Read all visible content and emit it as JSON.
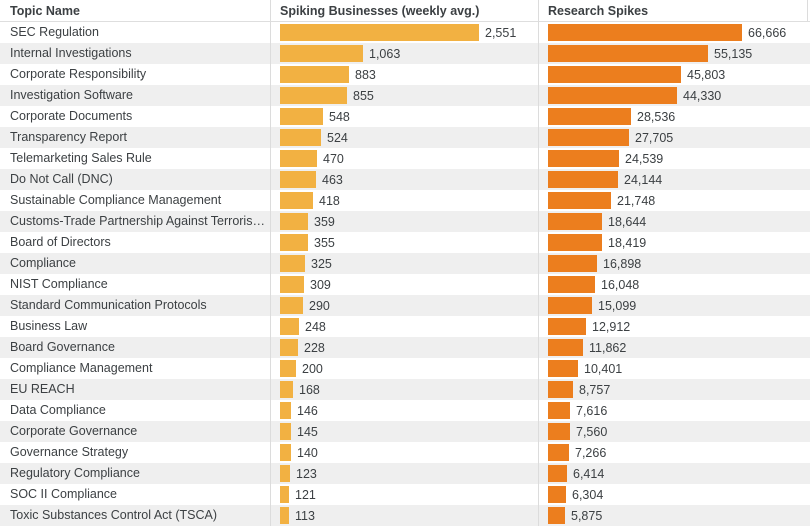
{
  "header": {
    "topic": "Topic Name",
    "spiking": "Spiking Businesses (weekly avg.)",
    "research": "Research Spikes"
  },
  "colors": {
    "spiking_bar": "#F2B142",
    "research_bar": "#EC7E1E",
    "row_alt_background": "#EFEFEF",
    "text": "#3C4043",
    "divider": "#DCDCDC"
  },
  "chart_data": {
    "type": "bar",
    "orientation": "horizontal",
    "title": "",
    "categories": [
      "SEC Regulation",
      "Internal Investigations",
      "Corporate Responsibility",
      "Investigation Software",
      "Corporate Documents",
      "Transparency Report",
      "Telemarketing Sales Rule",
      "Do Not Call (DNC)",
      "Sustainable Compliance Management",
      "Customs-Trade Partnership Against Terroris…",
      "Board of Directors",
      "Compliance",
      "NIST Compliance",
      "Standard Communication Protocols",
      "Business Law",
      "Board Governance",
      "Compliance Management",
      "EU REACH",
      "Data Compliance",
      "Corporate Governance",
      "Governance Strategy",
      "Regulatory Compliance",
      "SOC II Compliance",
      "Toxic Substances Control Act (TSCA)"
    ],
    "series": [
      {
        "name": "Spiking Businesses (weekly avg.)",
        "max": 2551,
        "values": [
          2551,
          1063,
          883,
          855,
          548,
          524,
          470,
          463,
          418,
          359,
          355,
          325,
          309,
          290,
          248,
          228,
          200,
          168,
          146,
          145,
          140,
          123,
          121,
          113
        ]
      },
      {
        "name": "Research Spikes",
        "max": 66666,
        "values": [
          66666,
          55135,
          45803,
          44330,
          28536,
          27705,
          24539,
          24144,
          21748,
          18644,
          18419,
          16898,
          16048,
          15099,
          12912,
          11862,
          10401,
          8757,
          7616,
          7560,
          7266,
          6414,
          6304,
          5875
        ]
      }
    ],
    "legend_position": "none",
    "grid": false
  },
  "rows": [
    {
      "topic": "SEC Regulation",
      "spiking": 2551,
      "spiking_label": "2,551",
      "research": 66666,
      "research_label": "66,666"
    },
    {
      "topic": "Internal Investigations",
      "spiking": 1063,
      "spiking_label": "1,063",
      "research": 55135,
      "research_label": "55,135"
    },
    {
      "topic": "Corporate Responsibility",
      "spiking": 883,
      "spiking_label": "883",
      "research": 45803,
      "research_label": "45,803"
    },
    {
      "topic": "Investigation Software",
      "spiking": 855,
      "spiking_label": "855",
      "research": 44330,
      "research_label": "44,330"
    },
    {
      "topic": "Corporate Documents",
      "spiking": 548,
      "spiking_label": "548",
      "research": 28536,
      "research_label": "28,536"
    },
    {
      "topic": "Transparency Report",
      "spiking": 524,
      "spiking_label": "524",
      "research": 27705,
      "research_label": "27,705"
    },
    {
      "topic": "Telemarketing Sales Rule",
      "spiking": 470,
      "spiking_label": "470",
      "research": 24539,
      "research_label": "24,539"
    },
    {
      "topic": "Do Not Call (DNC)",
      "spiking": 463,
      "spiking_label": "463",
      "research": 24144,
      "research_label": "24,144"
    },
    {
      "topic": "Sustainable Compliance Management",
      "spiking": 418,
      "spiking_label": "418",
      "research": 21748,
      "research_label": "21,748"
    },
    {
      "topic": "Customs-Trade Partnership Against Terroris…",
      "spiking": 359,
      "spiking_label": "359",
      "research": 18644,
      "research_label": "18,644"
    },
    {
      "topic": "Board of Directors",
      "spiking": 355,
      "spiking_label": "355",
      "research": 18419,
      "research_label": "18,419"
    },
    {
      "topic": "Compliance",
      "spiking": 325,
      "spiking_label": "325",
      "research": 16898,
      "research_label": "16,898"
    },
    {
      "topic": "NIST Compliance",
      "spiking": 309,
      "spiking_label": "309",
      "research": 16048,
      "research_label": "16,048"
    },
    {
      "topic": "Standard Communication Protocols",
      "spiking": 290,
      "spiking_label": "290",
      "research": 15099,
      "research_label": "15,099"
    },
    {
      "topic": "Business Law",
      "spiking": 248,
      "spiking_label": "248",
      "research": 12912,
      "research_label": "12,912"
    },
    {
      "topic": "Board Governance",
      "spiking": 228,
      "spiking_label": "228",
      "research": 11862,
      "research_label": "11,862"
    },
    {
      "topic": "Compliance Management",
      "spiking": 200,
      "spiking_label": "200",
      "research": 10401,
      "research_label": "10,401"
    },
    {
      "topic": "EU REACH",
      "spiking": 168,
      "spiking_label": "168",
      "research": 8757,
      "research_label": "8,757"
    },
    {
      "topic": "Data Compliance",
      "spiking": 146,
      "spiking_label": "146",
      "research": 7616,
      "research_label": "7,616"
    },
    {
      "topic": "Corporate Governance",
      "spiking": 145,
      "spiking_label": "145",
      "research": 7560,
      "research_label": "7,560"
    },
    {
      "topic": "Governance Strategy",
      "spiking": 140,
      "spiking_label": "140",
      "research": 7266,
      "research_label": "7,266"
    },
    {
      "topic": "Regulatory Compliance",
      "spiking": 123,
      "spiking_label": "123",
      "research": 6414,
      "research_label": "6,414"
    },
    {
      "topic": "SOC II Compliance",
      "spiking": 121,
      "spiking_label": "121",
      "research": 6304,
      "research_label": "6,304"
    },
    {
      "topic": "Toxic Substances Control Act (TSCA)",
      "spiking": 113,
      "spiking_label": "113",
      "research": 5875,
      "research_label": "5,875"
    }
  ]
}
